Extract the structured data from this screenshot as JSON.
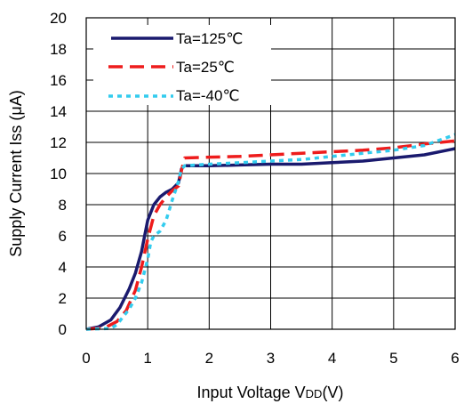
{
  "chart_data": {
    "type": "line",
    "title": "",
    "xlabel": "Input Voltage VDD(V)",
    "xlabel_parts": {
      "prefix": "Input Voltage V",
      "subscript": "DD",
      "suffix": "(V)"
    },
    "ylabel": "Supply Current Iss (μA)",
    "ylabel_parts": {
      "prefix": "Supply Current Iss (",
      "greek": "μ",
      "suffix": "A)"
    },
    "xlim": [
      0,
      6
    ],
    "ylim": [
      0,
      20
    ],
    "x_ticks": [
      "0",
      "1",
      "2",
      "3",
      "4",
      "5",
      "6"
    ],
    "y_ticks": [
      "0",
      "2",
      "4",
      "6",
      "8",
      "10",
      "12",
      "14",
      "16",
      "18",
      "20"
    ],
    "grid": true,
    "legend_position": "top-left",
    "series": [
      {
        "name": "Ta=125℃",
        "color": "#1a1a6e",
        "style": "solid",
        "points": [
          [
            0,
            0
          ],
          [
            0.2,
            0.15
          ],
          [
            0.4,
            0.6
          ],
          [
            0.55,
            1.4
          ],
          [
            0.7,
            2.6
          ],
          [
            0.8,
            3.6
          ],
          [
            0.9,
            5.0
          ],
          [
            0.95,
            6.0
          ],
          [
            1.0,
            7.0
          ],
          [
            1.1,
            8.0
          ],
          [
            1.2,
            8.5
          ],
          [
            1.3,
            8.8
          ],
          [
            1.4,
            9.0
          ],
          [
            1.5,
            9.4
          ],
          [
            1.55,
            10.3
          ],
          [
            1.6,
            10.5
          ],
          [
            2.0,
            10.5
          ],
          [
            2.5,
            10.55
          ],
          [
            3.0,
            10.6
          ],
          [
            3.5,
            10.6
          ],
          [
            4.0,
            10.7
          ],
          [
            4.5,
            10.8
          ],
          [
            5.0,
            11.0
          ],
          [
            5.5,
            11.2
          ],
          [
            6.0,
            11.6
          ]
        ]
      },
      {
        "name": "Ta=25℃",
        "color": "#ee1c1c",
        "style": "dashed",
        "points": [
          [
            0,
            0
          ],
          [
            0.3,
            0.1
          ],
          [
            0.5,
            0.5
          ],
          [
            0.65,
            1.2
          ],
          [
            0.8,
            2.5
          ],
          [
            0.9,
            4.0
          ],
          [
            1.0,
            5.8
          ],
          [
            1.1,
            7.3
          ],
          [
            1.2,
            8.0
          ],
          [
            1.3,
            8.5
          ],
          [
            1.4,
            8.9
          ],
          [
            1.5,
            9.2
          ],
          [
            1.55,
            10.2
          ],
          [
            1.6,
            11.0
          ],
          [
            2.0,
            11.05
          ],
          [
            2.5,
            11.1
          ],
          [
            3.0,
            11.2
          ],
          [
            3.5,
            11.3
          ],
          [
            4.0,
            11.4
          ],
          [
            4.5,
            11.5
          ],
          [
            5.0,
            11.65
          ],
          [
            5.5,
            11.9
          ],
          [
            6.0,
            12.1
          ]
        ]
      },
      {
        "name": "Ta=-40℃",
        "color": "#33ccee",
        "style": "dotted",
        "points": [
          [
            0,
            0
          ],
          [
            0.4,
            0.05
          ],
          [
            0.5,
            0.3
          ],
          [
            0.6,
            0.8
          ],
          [
            0.7,
            1.3
          ],
          [
            0.8,
            2.0
          ],
          [
            0.9,
            3.0
          ],
          [
            1.0,
            4.5
          ],
          [
            1.05,
            5.6
          ],
          [
            1.1,
            6.0
          ],
          [
            1.2,
            6.3
          ],
          [
            1.3,
            7.0
          ],
          [
            1.4,
            8.3
          ],
          [
            1.5,
            9.5
          ],
          [
            1.55,
            10.3
          ],
          [
            1.6,
            10.5
          ],
          [
            2.0,
            10.6
          ],
          [
            2.5,
            10.7
          ],
          [
            3.0,
            10.8
          ],
          [
            3.5,
            10.9
          ],
          [
            4.0,
            11.1
          ],
          [
            4.5,
            11.3
          ],
          [
            5.0,
            11.5
          ],
          [
            5.5,
            11.8
          ],
          [
            6.0,
            12.5
          ]
        ]
      }
    ]
  }
}
